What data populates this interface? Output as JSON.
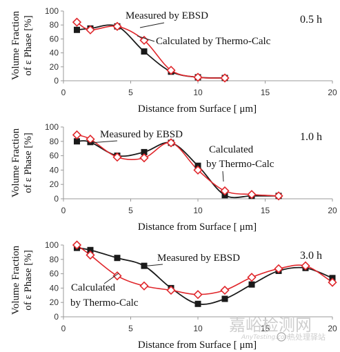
{
  "colors": {
    "ebsd": "#1a1a1a",
    "calc": "#e0262b",
    "axis": "#999999",
    "watermark": "#c8c8c8"
  },
  "watermark": {
    "main": "嘉峪检测网",
    "url": "AnyTesting.com",
    "sub": "热处理驿站"
  },
  "chart_data": [
    {
      "type": "line",
      "panel_label": "0.5 h",
      "xlabel": "Distance from Surface [ μm]",
      "ylabel_line1": "Volume Fraction",
      "ylabel_line2": "of ε Phase [%]",
      "xlim": [
        0,
        20
      ],
      "ylim": [
        0,
        100
      ],
      "xticks": [
        0,
        5,
        10,
        15,
        20
      ],
      "yticks": [
        0,
        20,
        40,
        60,
        80,
        100
      ],
      "annotations": [
        {
          "text": "Measured by EBSD",
          "series": "ebsd"
        },
        {
          "text": "Calculated by Thermo-Calc",
          "series": "calc"
        }
      ],
      "series": [
        {
          "key": "ebsd",
          "marker": "square",
          "x": [
            1,
            2,
            4,
            6,
            8,
            10,
            12
          ],
          "y": [
            73,
            75,
            78,
            42,
            13,
            5,
            4
          ]
        },
        {
          "key": "calc",
          "marker": "diamond",
          "x": [
            1,
            2,
            4,
            6,
            8,
            10,
            12
          ],
          "y": [
            84,
            73,
            78,
            58,
            15,
            5,
            4
          ]
        }
      ]
    },
    {
      "type": "line",
      "panel_label": "1.0 h",
      "xlabel": "Distance from Surface [ μm]",
      "ylabel_line1": "Volume Fraction",
      "ylabel_line2": "of ε Phase [%]",
      "xlim": [
        0,
        20
      ],
      "ylim": [
        0,
        100
      ],
      "xticks": [
        0,
        5,
        10,
        15,
        20
      ],
      "yticks": [
        0,
        20,
        40,
        60,
        80,
        100
      ],
      "annotations": [
        {
          "text": "Measured by EBSD",
          "series": "ebsd"
        },
        {
          "text": "Calculated",
          "series": "calc"
        },
        {
          "text": "by Thermo-Calc",
          "series": "calc"
        }
      ],
      "series": [
        {
          "key": "ebsd",
          "marker": "square",
          "x": [
            1,
            2,
            4,
            6,
            8,
            10,
            12,
            14,
            16
          ],
          "y": [
            80,
            79,
            60,
            65,
            78,
            46,
            5,
            4,
            4
          ]
        },
        {
          "key": "calc",
          "marker": "diamond",
          "x": [
            1,
            2,
            4,
            6,
            8,
            10,
            12,
            14,
            16
          ],
          "y": [
            89,
            83,
            58,
            57,
            78,
            40,
            11,
            6,
            4
          ]
        }
      ]
    },
    {
      "type": "line",
      "panel_label": "3.0 h",
      "xlabel": "Distance from Surface [ μm]",
      "ylabel_line1": "Volume Fraction",
      "ylabel_line2": "of ε Phase [%]",
      "xlim": [
        0,
        20
      ],
      "ylim": [
        0,
        100
      ],
      "xticks": [
        0,
        5,
        10,
        15,
        20
      ],
      "yticks": [
        0,
        20,
        40,
        60,
        80,
        100
      ],
      "annotations": [
        {
          "text": "Measured by EBSD",
          "series": "ebsd"
        },
        {
          "text": "Calculated",
          "series": "calc"
        },
        {
          "text": "by Thermo-Calc",
          "series": "calc"
        }
      ],
      "series": [
        {
          "key": "ebsd",
          "marker": "square",
          "x": [
            1,
            2,
            4,
            6,
            8,
            10,
            12,
            14,
            16,
            18,
            20
          ],
          "y": [
            96,
            93,
            82,
            71,
            40,
            18,
            25,
            45,
            64,
            68,
            54
          ]
        },
        {
          "key": "calc",
          "marker": "diamond",
          "x": [
            1,
            2,
            4,
            6,
            8,
            10,
            12,
            14,
            16,
            18,
            20
          ],
          "y": [
            100,
            86,
            57,
            43,
            37,
            31,
            37,
            55,
            67,
            71,
            48
          ]
        }
      ]
    }
  ]
}
